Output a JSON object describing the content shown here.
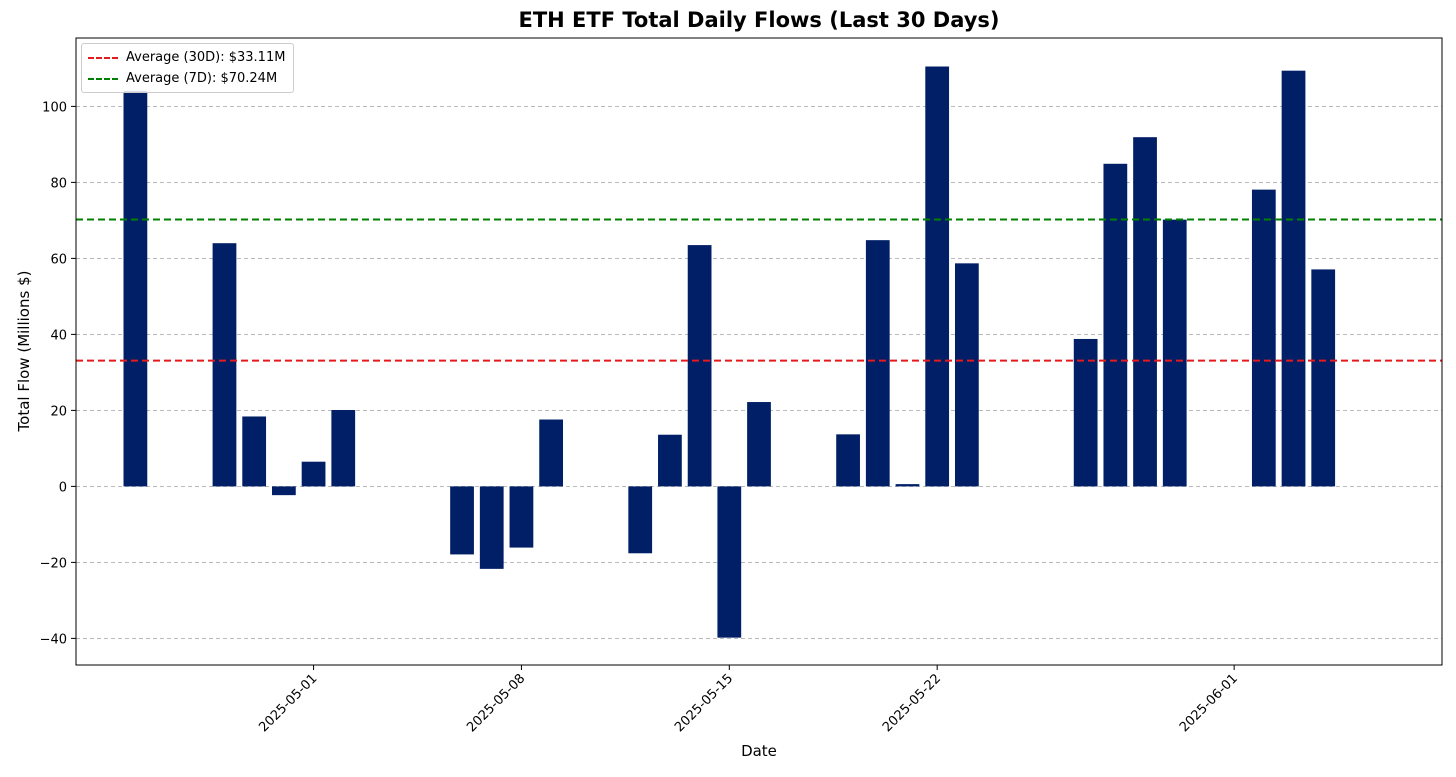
{
  "chart_data": {
    "type": "bar",
    "title": "ETH ETF Total Daily Flows (Last 30 Days)",
    "xlabel": "Date",
    "ylabel": "Total Flow (Millions $)",
    "ylim": [
      -47,
      118
    ],
    "yticks": [
      -40,
      -20,
      0,
      20,
      40,
      60,
      80,
      100
    ],
    "ytick_labels": [
      "−40",
      "−20",
      "0",
      "20",
      "40",
      "60",
      "80",
      "100"
    ],
    "xlim": [
      "2025-04-23",
      "2025-06-08"
    ],
    "xticks": [
      "2025-05-01",
      "2025-05-08",
      "2025-05-15",
      "2025-05-22",
      "2025-06-01"
    ],
    "grid": true,
    "legend_position": "top-left",
    "bar_color": "#001f66",
    "x": [
      "2025-04-25",
      "2025-04-28",
      "2025-04-29",
      "2025-04-30",
      "2025-05-01",
      "2025-05-02",
      "2025-05-06",
      "2025-05-07",
      "2025-05-08",
      "2025-05-09",
      "2025-05-12",
      "2025-05-13",
      "2025-05-14",
      "2025-05-15",
      "2025-05-16",
      "2025-05-19",
      "2025-05-20",
      "2025-05-21",
      "2025-05-22",
      "2025-05-23",
      "2025-05-27",
      "2025-05-28",
      "2025-05-29",
      "2025-05-30",
      "2025-06-02",
      "2025-06-03",
      "2025-06-04"
    ],
    "values": [
      104.1,
      64.0,
      18.4,
      -2.3,
      6.5,
      20.1,
      -17.9,
      -21.7,
      -16.1,
      17.6,
      -17.6,
      13.6,
      63.5,
      -39.8,
      22.2,
      13.7,
      64.8,
      0.6,
      110.5,
      58.7,
      38.8,
      84.9,
      91.9,
      70.2,
      78.1,
      109.4,
      57.1
    ],
    "series": [
      {
        "values": [
          104.1,
          64.0,
          18.4,
          -2.3,
          6.5,
          20.1,
          -17.9,
          -21.7,
          -16.1,
          17.6,
          -17.6,
          13.6,
          63.5,
          -39.8,
          22.2,
          13.7,
          64.8,
          0.6,
          110.5,
          58.7,
          38.8,
          84.9,
          91.9,
          70.2,
          78.1,
          109.4,
          57.1
        ]
      }
    ],
    "reference_lines": [
      {
        "label": "Average (30D): $33.11M",
        "value": 33.11,
        "color": "#e41a1c",
        "style": "dashed"
      },
      {
        "label": "Average (7D): $70.24M",
        "value": 70.24,
        "color": "#008000",
        "style": "dashed"
      }
    ]
  }
}
